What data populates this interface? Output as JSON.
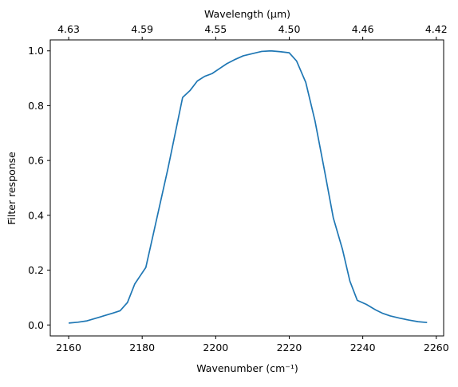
{
  "chart_data": {
    "type": "line",
    "title": "",
    "xlabel": "Wavenumber (cm⁻¹)",
    "ylabel": "Filter response",
    "top_xlabel": "Wavelength (μm)",
    "xlim": [
      2155.0,
      2262.0
    ],
    "ylim": [
      -0.04,
      1.04
    ],
    "x_ticks": [
      2160,
      2180,
      2200,
      2220,
      2240,
      2260
    ],
    "x_tick_labels": [
      "2160",
      "2180",
      "2200",
      "2220",
      "2240",
      "2260"
    ],
    "y_ticks": [
      0.0,
      0.2,
      0.4,
      0.6,
      0.8,
      1.0
    ],
    "y_tick_labels": [
      "0.0",
      "0.2",
      "0.4",
      "0.6",
      "0.8",
      "1.0"
    ],
    "top_ticks": [
      {
        "label": "4.63",
        "at": 2160
      },
      {
        "label": "4.59",
        "at": 2180
      },
      {
        "label": "4.55",
        "at": 2200
      },
      {
        "label": "4.50",
        "at": 2220
      },
      {
        "label": "4.46",
        "at": 2240
      },
      {
        "label": "4.42",
        "at": 2260
      }
    ],
    "grid": false,
    "color": "#1f77b4",
    "series": [
      {
        "x": [
          2160,
          2162.5,
          2165,
          2167.5,
          2170,
          2172,
          2174,
          2176,
          2178,
          2179.5,
          2181,
          2183,
          2185,
          2187,
          2189,
          2191,
          2193,
          2195,
          2197,
          2199,
          2201,
          2203,
          2205,
          2207.5,
          2210,
          2212.5,
          2215,
          2217.5,
          2220,
          2222,
          2224.5,
          2227,
          2229.5,
          2232,
          2234.5,
          2236.5,
          2238.5,
          2241,
          2243.5,
          2245.5,
          2247.5,
          2250,
          2252.5,
          2255,
          2257.5
        ],
        "y": [
          0.007,
          0.01,
          0.015,
          0.025,
          0.035,
          0.043,
          0.052,
          0.082,
          0.15,
          0.18,
          0.21,
          0.33,
          0.45,
          0.57,
          0.7,
          0.83,
          0.855,
          0.89,
          0.907,
          0.917,
          0.935,
          0.953,
          0.967,
          0.982,
          0.99,
          0.998,
          1.0,
          0.997,
          0.993,
          0.963,
          0.885,
          0.745,
          0.57,
          0.39,
          0.275,
          0.16,
          0.09,
          0.075,
          0.055,
          0.042,
          0.033,
          0.025,
          0.018,
          0.012,
          0.009
        ]
      }
    ]
  }
}
